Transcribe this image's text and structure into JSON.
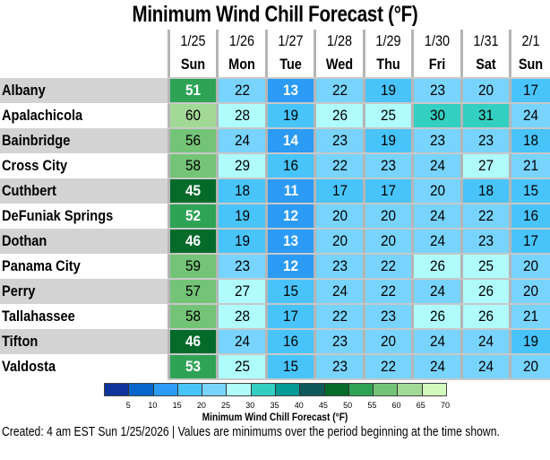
{
  "chart_data": {
    "type": "table",
    "title": "Minimum Wind Chill Forecast (°F)",
    "columns": [
      {
        "date": "1/25",
        "day": "Sun"
      },
      {
        "date": "1/26",
        "day": "Mon"
      },
      {
        "date": "1/27",
        "day": "Tue"
      },
      {
        "date": "1/28",
        "day": "Wed"
      },
      {
        "date": "1/29",
        "day": "Thu"
      },
      {
        "date": "1/30",
        "day": "Fri"
      },
      {
        "date": "1/31",
        "day": "Sat"
      },
      {
        "date": "2/1",
        "day": "Sun"
      }
    ],
    "rows": [
      {
        "location": "Albany",
        "values": [
          51,
          22,
          13,
          22,
          19,
          23,
          20,
          17
        ]
      },
      {
        "location": "Apalachicola",
        "values": [
          60,
          28,
          19,
          26,
          25,
          30,
          31,
          24
        ]
      },
      {
        "location": "Bainbridge",
        "values": [
          56,
          24,
          14,
          23,
          19,
          23,
          23,
          18
        ]
      },
      {
        "location": "Cross City",
        "values": [
          58,
          29,
          16,
          22,
          23,
          24,
          27,
          21
        ]
      },
      {
        "location": "Cuthbert",
        "values": [
          45,
          18,
          11,
          17,
          17,
          20,
          18,
          15
        ]
      },
      {
        "location": "DeFuniak Springs",
        "values": [
          52,
          19,
          12,
          20,
          20,
          24,
          22,
          16
        ]
      },
      {
        "location": "Dothan",
        "values": [
          46,
          19,
          13,
          20,
          20,
          24,
          23,
          17
        ]
      },
      {
        "location": "Panama City",
        "values": [
          59,
          23,
          12,
          23,
          22,
          26,
          25,
          20
        ]
      },
      {
        "location": "Perry",
        "values": [
          57,
          27,
          15,
          24,
          22,
          24,
          26,
          20
        ]
      },
      {
        "location": "Tallahassee",
        "values": [
          58,
          28,
          17,
          22,
          23,
          26,
          26,
          21
        ]
      },
      {
        "location": "Tifton",
        "values": [
          46,
          24,
          16,
          23,
          20,
          24,
          24,
          19
        ]
      },
      {
        "location": "Valdosta",
        "values": [
          53,
          25,
          15,
          23,
          22,
          24,
          24,
          20
        ]
      }
    ],
    "legend": {
      "title": "Minimum Wind Chill Forecast (°F)",
      "ticks": [
        5,
        10,
        15,
        20,
        25,
        30,
        35,
        40,
        45,
        50,
        55,
        60,
        65,
        70
      ],
      "bins": [
        {
          "min": 0,
          "max": 5,
          "color": "#10339c"
        },
        {
          "min": 5,
          "max": 10,
          "color": "#0766c9"
        },
        {
          "min": 10,
          "max": 15,
          "color": "#2b9bf6"
        },
        {
          "min": 15,
          "max": 20,
          "color": "#48c4fb"
        },
        {
          "min": 20,
          "max": 25,
          "color": "#78d4fd"
        },
        {
          "min": 25,
          "max": 30,
          "color": "#b0fcfc"
        },
        {
          "min": 30,
          "max": 35,
          "color": "#33cfc1"
        },
        {
          "min": 35,
          "max": 40,
          "color": "#049a93"
        },
        {
          "min": 40,
          "max": 45,
          "color": "#11585a"
        },
        {
          "min": 45,
          "max": 50,
          "color": "#056b2b"
        },
        {
          "min": 50,
          "max": 55,
          "color": "#2ea356"
        },
        {
          "min": 55,
          "max": 60,
          "color": "#74c477"
        },
        {
          "min": 60,
          "max": 65,
          "color": "#a3d997"
        },
        {
          "min": 65,
          "max": 70,
          "color": "#d4fbbe"
        }
      ]
    }
  },
  "footer": "Created: 4 am EST Sun 1/25/2026  |  Values are minimums over the period beginning at the time shown."
}
